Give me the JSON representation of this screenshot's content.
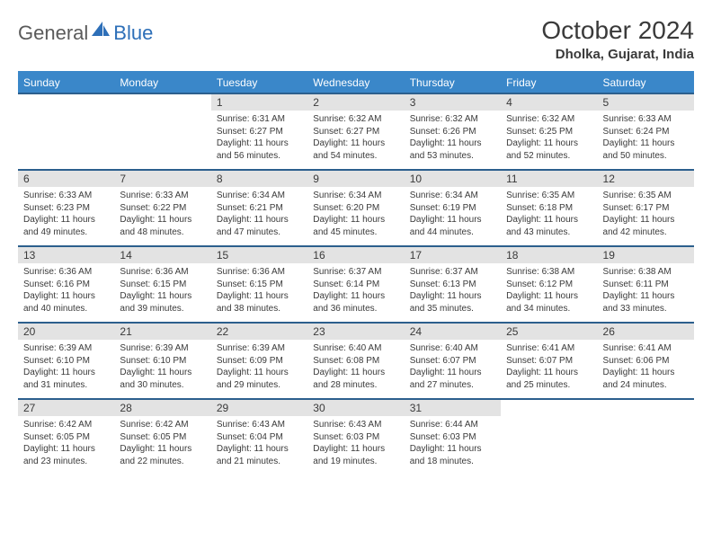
{
  "logo": {
    "part1": "General",
    "part2": "Blue"
  },
  "title": "October 2024",
  "location": "Dholka, Gujarat, India",
  "colors": {
    "header_bg": "#3a87c9",
    "daynum_bg": "#e3e3e3",
    "border": "#2c5f8d",
    "text": "#3a3a3a",
    "logo_accent": "#2d6fb8"
  },
  "day_headers": [
    "Sunday",
    "Monday",
    "Tuesday",
    "Wednesday",
    "Thursday",
    "Friday",
    "Saturday"
  ],
  "weeks": [
    {
      "nums": [
        "",
        "",
        "1",
        "2",
        "3",
        "4",
        "5"
      ],
      "details": [
        {
          "empty": true
        },
        {
          "empty": true
        },
        {
          "sunrise": "Sunrise: 6:31 AM",
          "sunset": "Sunset: 6:27 PM",
          "daylight": "Daylight: 11 hours and 56 minutes."
        },
        {
          "sunrise": "Sunrise: 6:32 AM",
          "sunset": "Sunset: 6:27 PM",
          "daylight": "Daylight: 11 hours and 54 minutes."
        },
        {
          "sunrise": "Sunrise: 6:32 AM",
          "sunset": "Sunset: 6:26 PM",
          "daylight": "Daylight: 11 hours and 53 minutes."
        },
        {
          "sunrise": "Sunrise: 6:32 AM",
          "sunset": "Sunset: 6:25 PM",
          "daylight": "Daylight: 11 hours and 52 minutes."
        },
        {
          "sunrise": "Sunrise: 6:33 AM",
          "sunset": "Sunset: 6:24 PM",
          "daylight": "Daylight: 11 hours and 50 minutes."
        }
      ]
    },
    {
      "nums": [
        "6",
        "7",
        "8",
        "9",
        "10",
        "11",
        "12"
      ],
      "details": [
        {
          "sunrise": "Sunrise: 6:33 AM",
          "sunset": "Sunset: 6:23 PM",
          "daylight": "Daylight: 11 hours and 49 minutes."
        },
        {
          "sunrise": "Sunrise: 6:33 AM",
          "sunset": "Sunset: 6:22 PM",
          "daylight": "Daylight: 11 hours and 48 minutes."
        },
        {
          "sunrise": "Sunrise: 6:34 AM",
          "sunset": "Sunset: 6:21 PM",
          "daylight": "Daylight: 11 hours and 47 minutes."
        },
        {
          "sunrise": "Sunrise: 6:34 AM",
          "sunset": "Sunset: 6:20 PM",
          "daylight": "Daylight: 11 hours and 45 minutes."
        },
        {
          "sunrise": "Sunrise: 6:34 AM",
          "sunset": "Sunset: 6:19 PM",
          "daylight": "Daylight: 11 hours and 44 minutes."
        },
        {
          "sunrise": "Sunrise: 6:35 AM",
          "sunset": "Sunset: 6:18 PM",
          "daylight": "Daylight: 11 hours and 43 minutes."
        },
        {
          "sunrise": "Sunrise: 6:35 AM",
          "sunset": "Sunset: 6:17 PM",
          "daylight": "Daylight: 11 hours and 42 minutes."
        }
      ]
    },
    {
      "nums": [
        "13",
        "14",
        "15",
        "16",
        "17",
        "18",
        "19"
      ],
      "details": [
        {
          "sunrise": "Sunrise: 6:36 AM",
          "sunset": "Sunset: 6:16 PM",
          "daylight": "Daylight: 11 hours and 40 minutes."
        },
        {
          "sunrise": "Sunrise: 6:36 AM",
          "sunset": "Sunset: 6:15 PM",
          "daylight": "Daylight: 11 hours and 39 minutes."
        },
        {
          "sunrise": "Sunrise: 6:36 AM",
          "sunset": "Sunset: 6:15 PM",
          "daylight": "Daylight: 11 hours and 38 minutes."
        },
        {
          "sunrise": "Sunrise: 6:37 AM",
          "sunset": "Sunset: 6:14 PM",
          "daylight": "Daylight: 11 hours and 36 minutes."
        },
        {
          "sunrise": "Sunrise: 6:37 AM",
          "sunset": "Sunset: 6:13 PM",
          "daylight": "Daylight: 11 hours and 35 minutes."
        },
        {
          "sunrise": "Sunrise: 6:38 AM",
          "sunset": "Sunset: 6:12 PM",
          "daylight": "Daylight: 11 hours and 34 minutes."
        },
        {
          "sunrise": "Sunrise: 6:38 AM",
          "sunset": "Sunset: 6:11 PM",
          "daylight": "Daylight: 11 hours and 33 minutes."
        }
      ]
    },
    {
      "nums": [
        "20",
        "21",
        "22",
        "23",
        "24",
        "25",
        "26"
      ],
      "details": [
        {
          "sunrise": "Sunrise: 6:39 AM",
          "sunset": "Sunset: 6:10 PM",
          "daylight": "Daylight: 11 hours and 31 minutes."
        },
        {
          "sunrise": "Sunrise: 6:39 AM",
          "sunset": "Sunset: 6:10 PM",
          "daylight": "Daylight: 11 hours and 30 minutes."
        },
        {
          "sunrise": "Sunrise: 6:39 AM",
          "sunset": "Sunset: 6:09 PM",
          "daylight": "Daylight: 11 hours and 29 minutes."
        },
        {
          "sunrise": "Sunrise: 6:40 AM",
          "sunset": "Sunset: 6:08 PM",
          "daylight": "Daylight: 11 hours and 28 minutes."
        },
        {
          "sunrise": "Sunrise: 6:40 AM",
          "sunset": "Sunset: 6:07 PM",
          "daylight": "Daylight: 11 hours and 27 minutes."
        },
        {
          "sunrise": "Sunrise: 6:41 AM",
          "sunset": "Sunset: 6:07 PM",
          "daylight": "Daylight: 11 hours and 25 minutes."
        },
        {
          "sunrise": "Sunrise: 6:41 AM",
          "sunset": "Sunset: 6:06 PM",
          "daylight": "Daylight: 11 hours and 24 minutes."
        }
      ]
    },
    {
      "nums": [
        "27",
        "28",
        "29",
        "30",
        "31",
        "",
        ""
      ],
      "details": [
        {
          "sunrise": "Sunrise: 6:42 AM",
          "sunset": "Sunset: 6:05 PM",
          "daylight": "Daylight: 11 hours and 23 minutes."
        },
        {
          "sunrise": "Sunrise: 6:42 AM",
          "sunset": "Sunset: 6:05 PM",
          "daylight": "Daylight: 11 hours and 22 minutes."
        },
        {
          "sunrise": "Sunrise: 6:43 AM",
          "sunset": "Sunset: 6:04 PM",
          "daylight": "Daylight: 11 hours and 21 minutes."
        },
        {
          "sunrise": "Sunrise: 6:43 AM",
          "sunset": "Sunset: 6:03 PM",
          "daylight": "Daylight: 11 hours and 19 minutes."
        },
        {
          "sunrise": "Sunrise: 6:44 AM",
          "sunset": "Sunset: 6:03 PM",
          "daylight": "Daylight: 11 hours and 18 minutes."
        },
        {
          "empty": true
        },
        {
          "empty": true
        }
      ]
    }
  ]
}
